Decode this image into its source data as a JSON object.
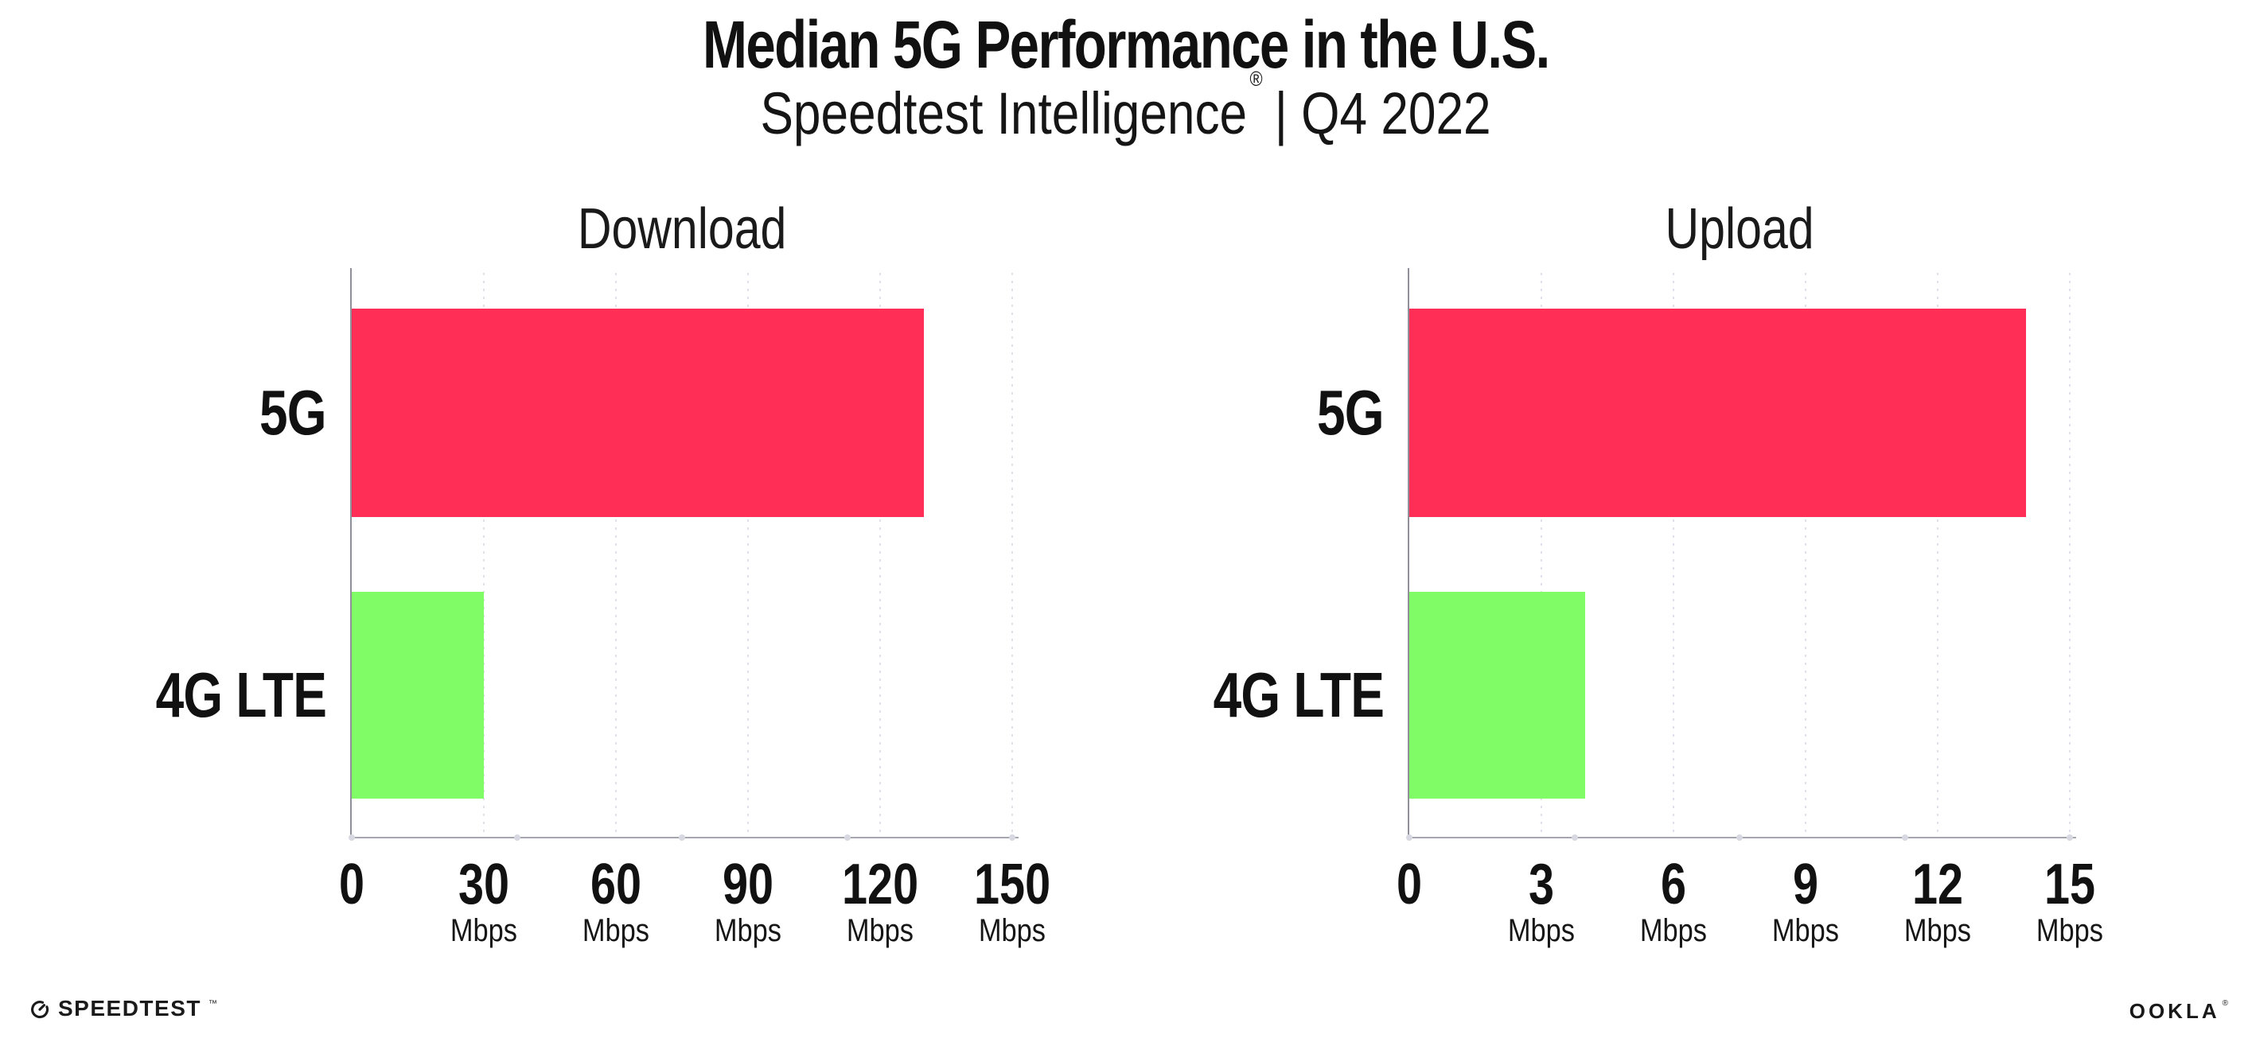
{
  "header": {
    "title": "Median 5G Performance in the U.S.",
    "subtitle_brand": "Speedtest Intelligence",
    "registered_mark": "®",
    "subtitle_rest": "| Q4 2022"
  },
  "colors": {
    "bar_5g": "#ff2e57",
    "bar_4g": "#80fd66",
    "gridline": "#e0e0ea",
    "axis_line": "#a6a6ae",
    "axis_spine": "#90909a",
    "tick_dot": "#d8d8e2",
    "text": "#111111"
  },
  "chart_data": [
    {
      "type": "bar",
      "orientation": "horizontal",
      "title": "Download",
      "categories": [
        "5G",
        "4G LTE"
      ],
      "values": [
        130,
        30
      ],
      "unit": "Mbps",
      "xlim": [
        0,
        150
      ],
      "xticks": [
        0,
        30,
        60,
        90,
        120,
        150
      ],
      "bar_colors": [
        "#ff2e57",
        "#80fd66"
      ],
      "grid": "vertical-dotted",
      "legend": "none"
    },
    {
      "type": "bar",
      "orientation": "horizontal",
      "title": "Upload",
      "categories": [
        "5G",
        "4G LTE"
      ],
      "values": [
        14,
        4
      ],
      "unit": "Mbps",
      "xlim": [
        0,
        15
      ],
      "xticks": [
        0,
        3,
        6,
        9,
        12,
        15
      ],
      "bar_colors": [
        "#ff2e57",
        "#80fd66"
      ],
      "grid": "vertical-dotted",
      "legend": "none"
    }
  ],
  "footer": {
    "speedtest_wordmark": "SPEEDTEST",
    "speedtest_tm": "™",
    "ookla_wordmark": "OOKLA",
    "ookla_reg": "®"
  }
}
